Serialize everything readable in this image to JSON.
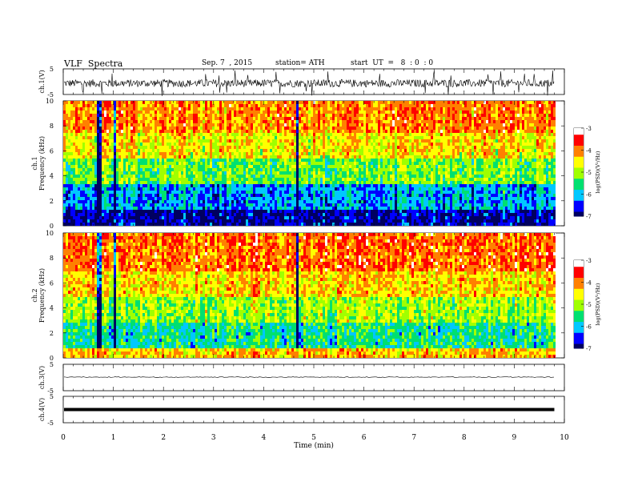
{
  "header": {
    "title": "VLF  Spectra",
    "date": "Sep. 7  , 2015",
    "station": "station= ATH",
    "start_ut": "start  UT  =   8  : 0  : 0"
  },
  "chart_data": [
    {
      "type": "line",
      "panel": "ch1-waveform",
      "ylabel": "ch.1(V)",
      "ylim": [
        -5,
        5
      ],
      "yticks": [
        "5",
        "-5"
      ],
      "xlim": [
        0,
        10
      ],
      "series_color": "#000000",
      "typical_range": [
        -1.5,
        1.5
      ]
    },
    {
      "type": "heatmap",
      "panel": "ch1-spectrogram",
      "ylabel": "ch.1\nFrequency  (kHz)",
      "ylim": [
        0,
        10
      ],
      "yticks": [
        "0",
        "2",
        "4",
        "6",
        "8",
        "10"
      ],
      "xlim": [
        0,
        9.8
      ],
      "colorbar": {
        "label": "log(PSD)(V²/Hz)",
        "range": [
          -7,
          -3
        ],
        "ticks": [
          "-3",
          "-4",
          "-5",
          "-6",
          "-7"
        ],
        "colors": [
          "#000060",
          "#0000ff",
          "#00c8ff",
          "#00e070",
          "#a0ff00",
          "#ffff00",
          "#ff8000",
          "#ff0000",
          "#ffffff"
        ]
      },
      "bands": [
        {
          "from_khz": 0,
          "to_khz": 1.5,
          "level": -6.8
        },
        {
          "from_khz": 1.5,
          "to_khz": 3.5,
          "level": -6.1
        },
        {
          "from_khz": 3.5,
          "to_khz": 5.5,
          "level": -5.2
        },
        {
          "from_khz": 5.5,
          "to_khz": 7.5,
          "level": -4.5
        },
        {
          "from_khz": 7.5,
          "to_khz": 10,
          "level": -4.0
        }
      ],
      "dark_streaks_min": [
        0.7,
        1.0,
        4.65
      ]
    },
    {
      "type": "heatmap",
      "panel": "ch2-spectrogram",
      "ylabel": "ch.2\nFrequency  (kHz)",
      "ylim": [
        0,
        10
      ],
      "yticks": [
        "0",
        "2",
        "4",
        "6",
        "8",
        "10"
      ],
      "xlim": [
        0,
        9.8
      ],
      "colorbar": {
        "label": "log(PSD)(V²/Hz)",
        "range": [
          -7,
          -3
        ],
        "ticks": [
          "-3",
          "-4",
          "-5",
          "-6",
          "-7"
        ],
        "colors": [
          "#000060",
          "#0000ff",
          "#00c8ff",
          "#00e070",
          "#a0ff00",
          "#ffff00",
          "#ff8000",
          "#ff0000",
          "#ffffff"
        ]
      },
      "bands": [
        {
          "from_khz": 0,
          "to_khz": 1.0,
          "level": -4.3
        },
        {
          "from_khz": 1.0,
          "to_khz": 3.0,
          "level": -5.6
        },
        {
          "from_khz": 3.0,
          "to_khz": 5.0,
          "level": -5.0
        },
        {
          "from_khz": 5.0,
          "to_khz": 7.0,
          "level": -4.4
        },
        {
          "from_khz": 7.0,
          "to_khz": 10,
          "level": -3.9
        }
      ],
      "dark_streaks_min": [
        0.7,
        1.0,
        4.65
      ]
    },
    {
      "type": "line",
      "panel": "ch3-waveform",
      "ylabel": "ch.3(V)",
      "ylim": [
        -5,
        5
      ],
      "yticks": [
        "5",
        "-5"
      ],
      "xlim": [
        0,
        10
      ],
      "series_color": "#000000",
      "typical_range": [
        0,
        0
      ]
    },
    {
      "type": "line",
      "panel": "ch4-waveform",
      "ylabel": "ch.4(V)",
      "ylim": [
        -5,
        5
      ],
      "yticks": [
        "5",
        "-5"
      ],
      "xlim": [
        0,
        10
      ],
      "series_color": "#000000",
      "typical_range": [
        0,
        0
      ]
    }
  ],
  "x_axis": {
    "label": "Time  (min)",
    "ticks": [
      "0",
      "1",
      "2",
      "3",
      "4",
      "5",
      "6",
      "7",
      "8",
      "9",
      "10"
    ]
  }
}
